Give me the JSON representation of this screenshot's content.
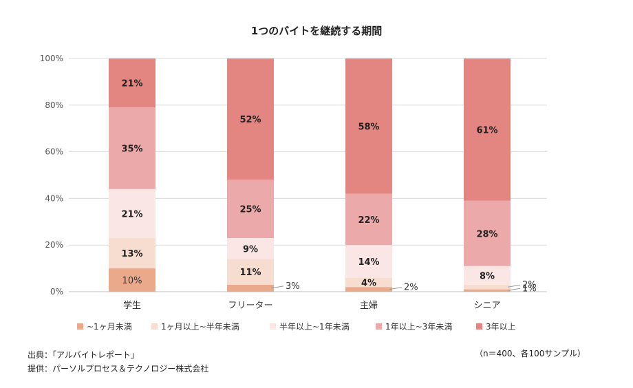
{
  "chart_data": {
    "type": "bar",
    "stacked": true,
    "title": "1つのバイトを継続する期間",
    "categories": [
      "学生",
      "フリーター",
      "主婦",
      "シニア"
    ],
    "series": [
      {
        "name": "~1ヶ月未満",
        "color": "#eaa98b",
        "values": [
          10,
          3,
          2,
          1
        ],
        "labels": [
          "10%",
          "3%",
          "2%",
          "1%"
        ]
      },
      {
        "name": "1ヶ月以上~半年未満",
        "color": "#f7ddcf",
        "values": [
          13,
          11,
          4,
          2
        ],
        "labels": [
          "13%",
          "11%",
          "4%",
          "2%"
        ]
      },
      {
        "name": "半年以上~1年未満",
        "color": "#fbe6e6",
        "values": [
          21,
          9,
          14,
          8
        ],
        "labels": [
          "21%",
          "9%",
          "14%",
          "8%"
        ]
      },
      {
        "name": "1年以上~3年未満",
        "color": "#eba9a9",
        "values": [
          35,
          25,
          22,
          28
        ],
        "labels": [
          "35%",
          "25%",
          "22%",
          "28%"
        ]
      },
      {
        "name": "3年以上",
        "color": "#e38581",
        "values": [
          21,
          52,
          58,
          61
        ],
        "labels": [
          "21%",
          "52%",
          "58%",
          "61%"
        ]
      }
    ],
    "ylim": [
      0,
      100
    ],
    "yticks": [
      "0%",
      "20%",
      "40%",
      "60%",
      "80%",
      "100%"
    ],
    "grid": true,
    "legend": "bottom"
  },
  "notes": {
    "source": "出典：「アルバイトレポート」",
    "provider": "提供：パーソルプロセス＆テクノロジー株式会社",
    "sample": "（n＝400、各100サンプル）"
  }
}
